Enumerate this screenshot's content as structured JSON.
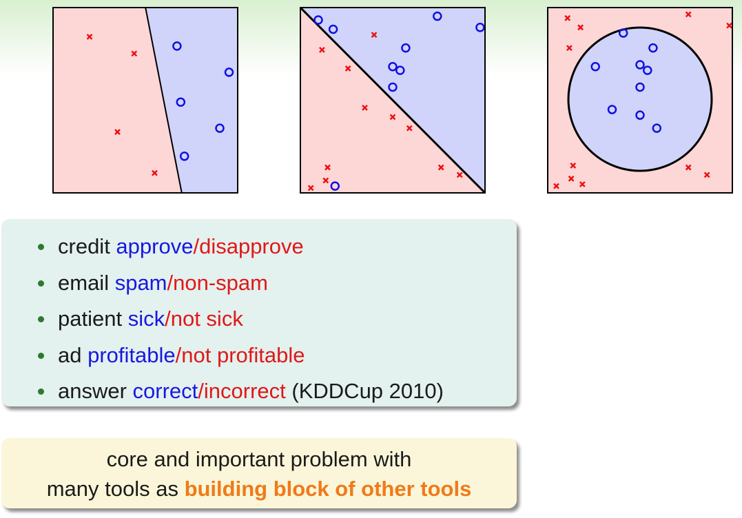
{
  "plots": [
    {
      "boundary": "line",
      "positive": [
        [
          0.67,
          0.21
        ],
        [
          0.95,
          0.35
        ],
        [
          0.69,
          0.51
        ],
        [
          0.9,
          0.65
        ],
        [
          0.71,
          0.8
        ]
      ],
      "negative": [
        [
          0.2,
          0.16
        ],
        [
          0.44,
          0.25
        ],
        [
          0.35,
          0.67
        ],
        [
          0.55,
          0.89
        ]
      ]
    },
    {
      "boundary": "diagonal",
      "positive": [
        [
          0.1,
          0.07
        ],
        [
          0.18,
          0.12
        ],
        [
          0.74,
          0.05
        ],
        [
          0.97,
          0.11
        ],
        [
          0.57,
          0.22
        ],
        [
          0.5,
          0.32
        ],
        [
          0.54,
          0.34
        ],
        [
          0.5,
          0.43
        ],
        [
          0.19,
          0.96
        ]
      ],
      "negative": [
        [
          0.4,
          0.15
        ],
        [
          0.12,
          0.23
        ],
        [
          0.26,
          0.33
        ],
        [
          0.35,
          0.54
        ],
        [
          0.5,
          0.59
        ],
        [
          0.59,
          0.65
        ],
        [
          0.15,
          0.86
        ],
        [
          0.14,
          0.93
        ],
        [
          0.06,
          0.97
        ],
        [
          0.76,
          0.86
        ],
        [
          0.86,
          0.9
        ]
      ]
    },
    {
      "boundary": "circle",
      "positive": [
        [
          0.41,
          0.14
        ],
        [
          0.57,
          0.22
        ],
        [
          0.26,
          0.32
        ],
        [
          0.5,
          0.31
        ],
        [
          0.54,
          0.34
        ],
        [
          0.5,
          0.43
        ],
        [
          0.35,
          0.55
        ],
        [
          0.5,
          0.58
        ],
        [
          0.59,
          0.65
        ]
      ],
      "negative": [
        [
          0.11,
          0.06
        ],
        [
          0.18,
          0.11
        ],
        [
          0.76,
          0.04
        ],
        [
          0.98,
          0.1
        ],
        [
          0.12,
          0.22
        ],
        [
          0.14,
          0.85
        ],
        [
          0.13,
          0.92
        ],
        [
          0.05,
          0.96
        ],
        [
          0.19,
          0.95
        ],
        [
          0.76,
          0.86
        ],
        [
          0.86,
          0.9
        ]
      ]
    }
  ],
  "examples": [
    {
      "subject": "credit ",
      "pos": "approve",
      "sep": "/",
      "neg": "disapprove",
      "suffix": ""
    },
    {
      "subject": "email ",
      "pos": "spam",
      "sep": "/",
      "neg": "non-spam",
      "suffix": ""
    },
    {
      "subject": "patient ",
      "pos": "sick",
      "sep": "/",
      "neg": "not sick",
      "suffix": ""
    },
    {
      "subject": "ad ",
      "pos": "profitable",
      "sep": "/",
      "neg": "not profitable",
      "suffix": ""
    },
    {
      "subject": "answer ",
      "pos": "correct",
      "sep": "/",
      "neg": "incorrect",
      "suffix": " (KDDCup 2010)"
    }
  ],
  "summary": {
    "line1": "core and important problem with",
    "line2_prefix": "many tools as ",
    "line2_highlight": "building block of other tools"
  },
  "colors": {
    "positive_region": "#d0d4fb",
    "negative_region": "#fdd6d6",
    "positive_marker": "#1010e0",
    "negative_marker": "#ee1010",
    "boundary": "#000000"
  }
}
